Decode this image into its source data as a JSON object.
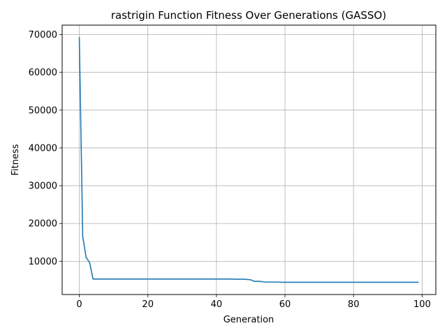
{
  "chart_data": {
    "type": "line",
    "title": "rastrigin Function Fitness Over Generations (GASSO)",
    "xlabel": "Generation",
    "ylabel": "Fitness",
    "xlim": [
      -5,
      104
    ],
    "ylim": [
      1200,
      72500
    ],
    "xticks": [
      0,
      20,
      40,
      60,
      80,
      100
    ],
    "yticks": [
      10000,
      20000,
      30000,
      40000,
      50000,
      60000,
      70000
    ],
    "grid": true,
    "line_color": "#1f77b4",
    "series": [
      {
        "x": [
          0,
          1,
          2,
          3,
          4,
          5,
          10,
          20,
          30,
          40,
          44,
          46,
          48,
          50,
          51,
          52,
          53,
          54,
          55,
          56,
          57,
          58,
          59,
          60,
          70,
          80,
          90,
          99
        ],
        "values": [
          69300,
          16500,
          11000,
          9700,
          5300,
          5300,
          5300,
          5300,
          5300,
          5300,
          5300,
          5250,
          5250,
          5100,
          4700,
          4700,
          4650,
          4500,
          4500,
          4500,
          4500,
          4500,
          4450,
          4450,
          4450,
          4450,
          4450,
          4450
        ]
      }
    ]
  }
}
